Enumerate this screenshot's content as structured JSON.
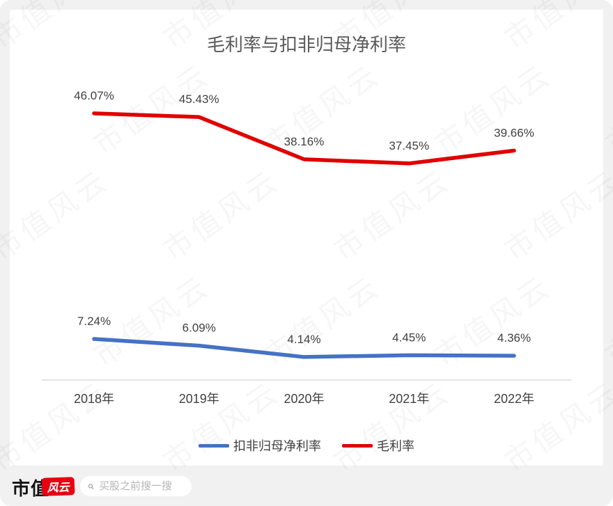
{
  "watermark": {
    "text": "市值风云"
  },
  "chart_data": {
    "type": "line",
    "title": "毛利率与扣非归母净利率",
    "categories": [
      "2018年",
      "2019年",
      "2020年",
      "2021年",
      "2022年"
    ],
    "series": [
      {
        "name": "扣非归母净利率",
        "color": "#4472C4",
        "values": [
          7.24,
          6.09,
          4.14,
          4.45,
          4.36
        ],
        "labels": [
          "7.24%",
          "6.09%",
          "4.14%",
          "4.45%",
          "4.36%"
        ]
      },
      {
        "name": "毛利率",
        "color": "#E00000",
        "values": [
          46.07,
          45.43,
          38.16,
          37.45,
          39.66
        ],
        "labels": [
          "46.07%",
          "45.43%",
          "38.16%",
          "37.45%",
          "39.66%"
        ]
      }
    ],
    "xlabel": "",
    "ylabel": "",
    "ylim": [
      0,
      55
    ],
    "grid": false,
    "legend_position": "bottom",
    "axis_color": "#D9D9D9",
    "label_color": "#404040"
  },
  "footer": {
    "brand_text": "市值",
    "brand_badge": "风云",
    "badge_color": "#E60012",
    "search_placeholder": "买股之前搜一搜"
  }
}
